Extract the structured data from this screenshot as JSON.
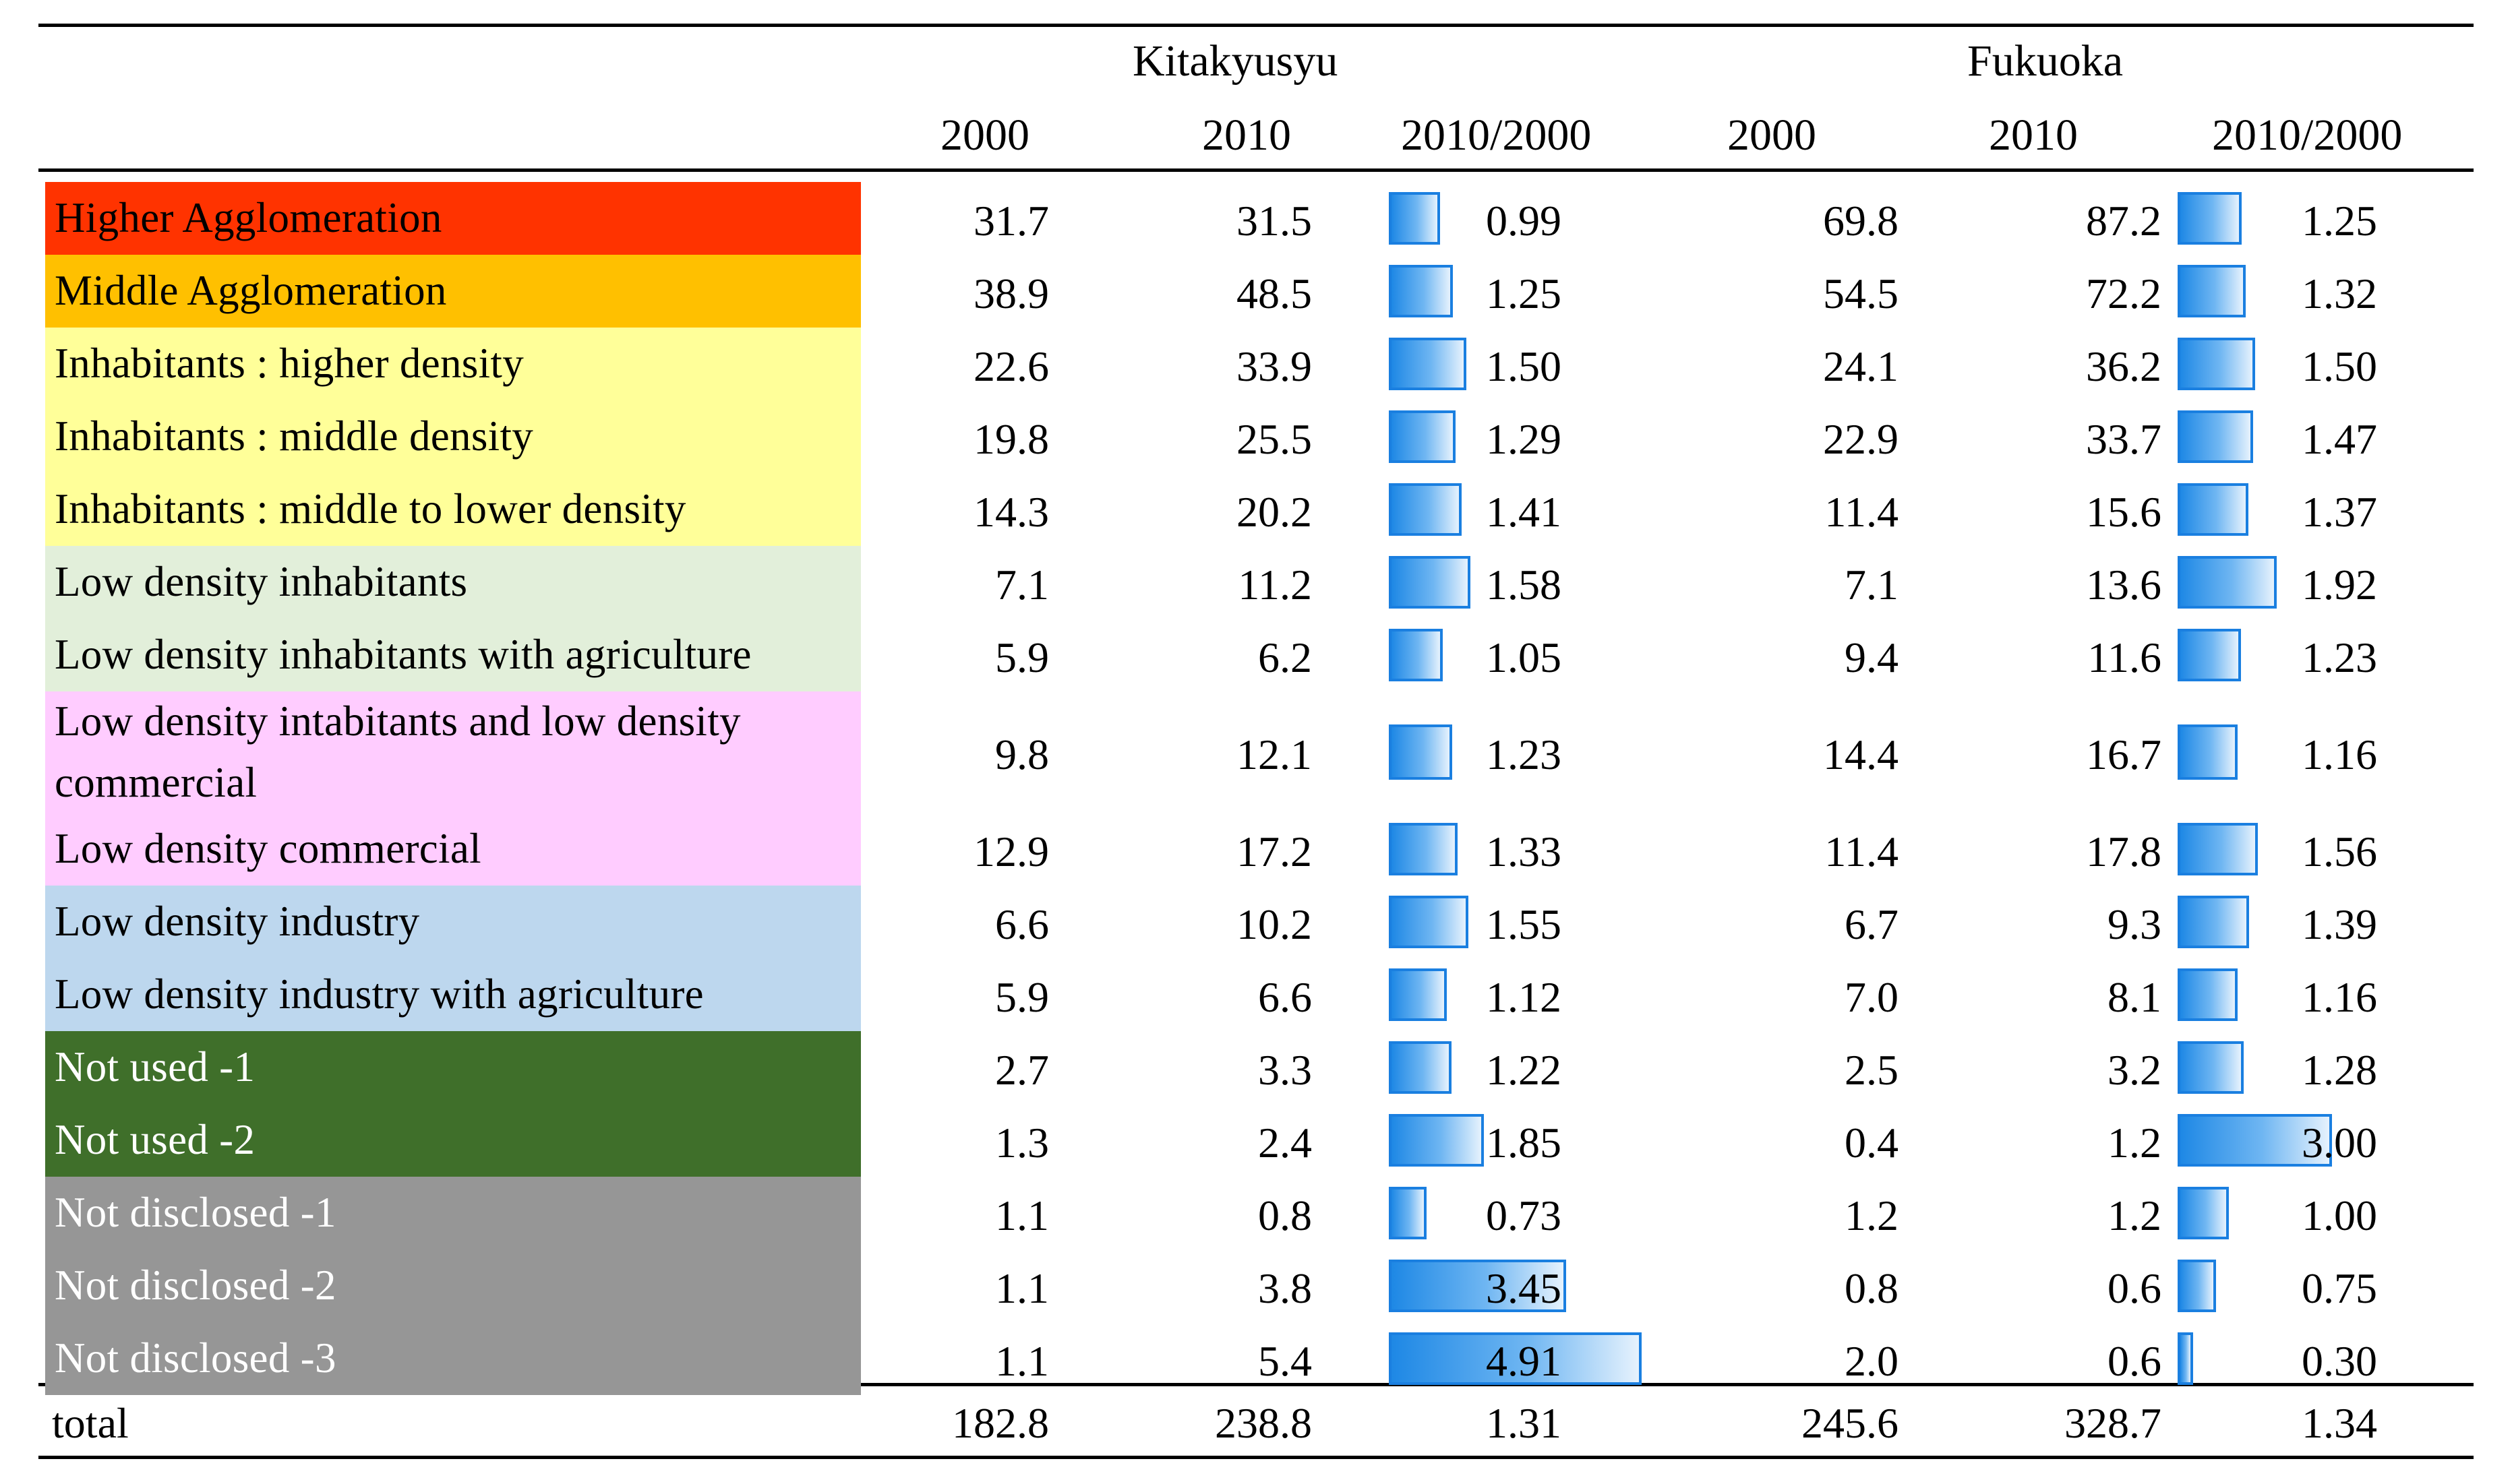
{
  "header": {
    "groups": [
      "Kitakyusyu",
      "Fukuoka"
    ],
    "columns": [
      "2000",
      "2010",
      "2010/2000",
      "2000",
      "2010",
      "2010/2000"
    ]
  },
  "rows": [
    {
      "label": "Higher Agglomeration",
      "bg": "#FF3300",
      "fg": "#000000",
      "k2000": "31.7",
      "k2010": "31.5",
      "kratio": "0.99",
      "f2000": "69.8",
      "f2010": "87.2",
      "fratio": "1.25"
    },
    {
      "label": "Middle Agglomeration",
      "bg": "#FFC000",
      "fg": "#000000",
      "k2000": "38.9",
      "k2010": "48.5",
      "kratio": "1.25",
      "f2000": "54.5",
      "f2010": "72.2",
      "fratio": "1.32"
    },
    {
      "label": "Inhabitants : higher density",
      "bg": "#FFFF99",
      "fg": "#000000",
      "k2000": "22.6",
      "k2010": "33.9",
      "kratio": "1.50",
      "f2000": "24.1",
      "f2010": "36.2",
      "fratio": "1.50"
    },
    {
      "label": "Inhabitants : middle density",
      "bg": "#FFFF99",
      "fg": "#000000",
      "k2000": "19.8",
      "k2010": "25.5",
      "kratio": "1.29",
      "f2000": "22.9",
      "f2010": "33.7",
      "fratio": "1.47"
    },
    {
      "label": "Inhabitants : middle to lower density",
      "bg": "#FFFF99",
      "fg": "#000000",
      "k2000": "14.3",
      "k2010": "20.2",
      "kratio": "1.41",
      "f2000": "11.4",
      "f2010": "15.6",
      "fratio": "1.37"
    },
    {
      "label": "Low density inhabitants",
      "bg": "#E2EFDA",
      "fg": "#000000",
      "k2000": "7.1",
      "k2010": "11.2",
      "kratio": "1.58",
      "f2000": "7.1",
      "f2010": "13.6",
      "fratio": "1.92"
    },
    {
      "label": "Low density inhabitants with agriculture",
      "bg": "#E2EFDA",
      "fg": "#000000",
      "k2000": "5.9",
      "k2010": "6.2",
      "kratio": "1.05",
      "f2000": "9.4",
      "f2010": "11.6",
      "fratio": "1.23"
    },
    {
      "label": "Low density intabitants and low density commercial",
      "bg": "#FFCCFF",
      "fg": "#000000",
      "k2000": "9.8",
      "k2010": "12.1",
      "kratio": "1.23",
      "f2000": "14.4",
      "f2010": "16.7",
      "fratio": "1.16"
    },
    {
      "label": "Low density commercial",
      "bg": "#FFCCFF",
      "fg": "#000000",
      "k2000": "12.9",
      "k2010": "17.2",
      "kratio": "1.33",
      "f2000": "11.4",
      "f2010": "17.8",
      "fratio": "1.56"
    },
    {
      "label": "Low density industry",
      "bg": "#BDD7EE",
      "fg": "#000000",
      "k2000": "6.6",
      "k2010": "10.2",
      "kratio": "1.55",
      "f2000": "6.7",
      "f2010": "9.3",
      "fratio": "1.39"
    },
    {
      "label": "Low density industry with agriculture",
      "bg": "#BDD7EE",
      "fg": "#000000",
      "k2000": "5.9",
      "k2010": "6.6",
      "kratio": "1.12",
      "f2000": "7.0",
      "f2010": "8.1",
      "fratio": "1.16"
    },
    {
      "label": "Not used -1",
      "bg": "#3F6F2A",
      "fg": "#FFFFFF",
      "k2000": "2.7",
      "k2010": "3.3",
      "kratio": "1.22",
      "f2000": "2.5",
      "f2010": "3.2",
      "fratio": "1.28"
    },
    {
      "label": "Not used -2",
      "bg": "#3F6F2A",
      "fg": "#FFFFFF",
      "k2000": "1.3",
      "k2010": "2.4",
      "kratio": "1.85",
      "f2000": "0.4",
      "f2010": "1.2",
      "fratio": "3.00"
    },
    {
      "label": "Not disclosed -1",
      "bg": "#969696",
      "fg": "#FFFFFF",
      "k2000": "1.1",
      "k2010": "0.8",
      "kratio": "0.73",
      "f2000": "1.2",
      "f2010": "1.2",
      "fratio": "1.00"
    },
    {
      "label": "Not disclosed -2",
      "bg": "#969696",
      "fg": "#FFFFFF",
      "k2000": "1.1",
      "k2010": "3.8",
      "kratio": "3.45",
      "f2000": "0.8",
      "f2010": "0.6",
      "fratio": "0.75"
    },
    {
      "label": "Not disclosed -3",
      "bg": "#969696",
      "fg": "#FFFFFF",
      "k2000": "1.1",
      "k2010": "5.4",
      "kratio": "4.91",
      "f2000": "2.0",
      "f2010": "0.6",
      "fratio": "0.30"
    }
  ],
  "total": {
    "label": "total",
    "k2000": "182.8",
    "k2010": "238.8",
    "kratio": "1.31",
    "f2000": "245.6",
    "f2010": "328.7",
    "fratio": "1.34"
  },
  "bar_scale_max": 4.91,
  "colors": {
    "bar_border": "#1a7fe0",
    "bar_dark": "#1e88e5",
    "bar_light": "#e6f2fd"
  }
}
